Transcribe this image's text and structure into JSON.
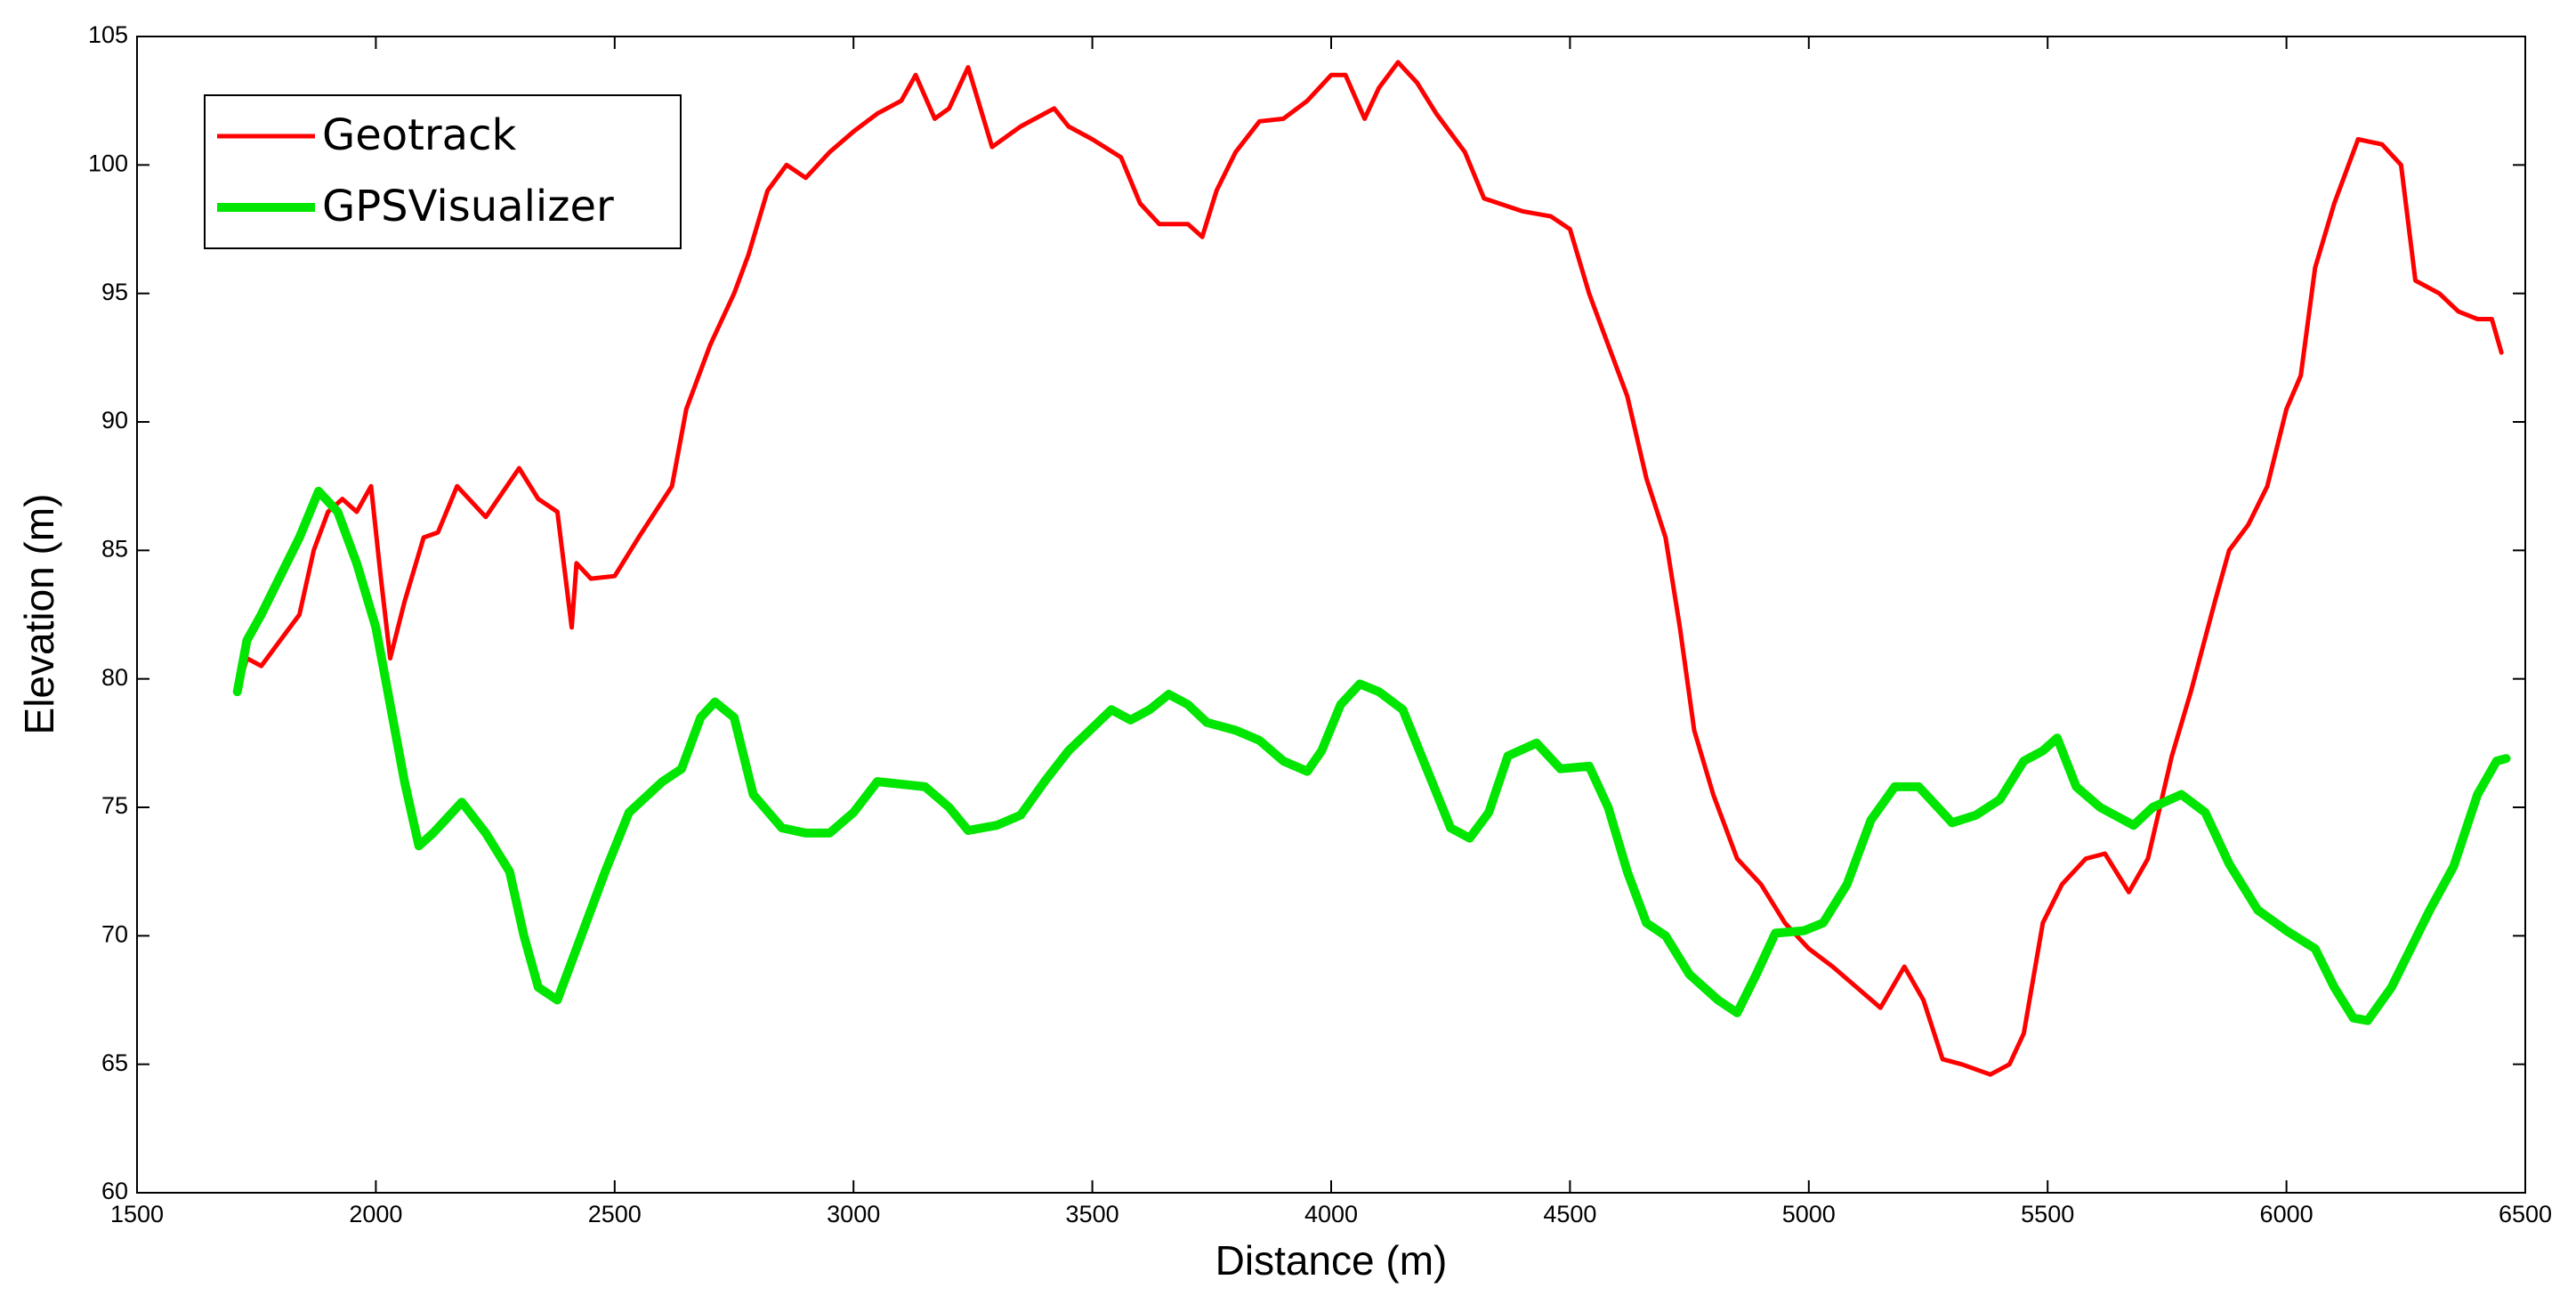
{
  "chart_data": {
    "type": "line",
    "xlabel": "Distance (m)",
    "ylabel": "Elevation (m)",
    "xlim": [
      1500,
      6500
    ],
    "xticks": [
      1500,
      2000,
      2500,
      3000,
      3500,
      4000,
      4500,
      5000,
      5500,
      6000,
      6500
    ],
    "ylim": [
      60,
      105
    ],
    "yticks": [
      60,
      65,
      70,
      75,
      80,
      85,
      90,
      95,
      100,
      105
    ],
    "legend": "upper left",
    "series": [
      {
        "name": "Geotrack",
        "color": "#ff0000",
        "x": [
          1710,
          1730,
          1760,
          1800,
          1840,
          1870,
          1900,
          1930,
          1960,
          1990,
          2010,
          2030,
          2060,
          2100,
          2130,
          2170,
          2230,
          2300,
          2340,
          2380,
          2410,
          2420,
          2450,
          2500,
          2550,
          2620,
          2650,
          2700,
          2750,
          2780,
          2820,
          2860,
          2900,
          2950,
          3000,
          3050,
          3100,
          3130,
          3170,
          3200,
          3240,
          3290,
          3350,
          3420,
          3450,
          3500,
          3560,
          3600,
          3640,
          3700,
          3730,
          3760,
          3800,
          3850,
          3900,
          3950,
          4000,
          4030,
          4070,
          4100,
          4140,
          4180,
          4220,
          4280,
          4320,
          4400,
          4460,
          4500,
          4540,
          4580,
          4620,
          4660,
          4700,
          4730,
          4760,
          4800,
          4850,
          4900,
          4950,
          5000,
          5050,
          5100,
          5150,
          5200,
          5240,
          5280,
          5320,
          5380,
          5420,
          5450,
          5490,
          5530,
          5580,
          5620,
          5670,
          5710,
          5760,
          5800,
          5850,
          5880,
          5920,
          5960,
          6000,
          6030,
          6060,
          6100,
          6150,
          6200,
          6240,
          6270,
          6320,
          6360,
          6400,
          6430,
          6450
        ],
        "values": [
          79.5,
          80.8,
          80.5,
          81.5,
          82.5,
          85,
          86.5,
          87,
          86.5,
          87.5,
          84,
          80.8,
          83,
          85.5,
          85.7,
          87.5,
          86.3,
          88.2,
          87,
          86.5,
          82,
          84.5,
          83.9,
          84,
          85.5,
          87.5,
          90.5,
          93,
          95,
          96.5,
          99,
          100,
          99.5,
          100.5,
          101.3,
          102,
          102.5,
          103.5,
          101.8,
          102.2,
          103.8,
          100.7,
          101.5,
          102.2,
          101.5,
          101,
          100.3,
          98.5,
          97.7,
          97.7,
          97.2,
          99,
          100.5,
          101.7,
          101.8,
          102.5,
          103.5,
          103.5,
          101.8,
          103,
          104,
          103.2,
          102,
          100.5,
          98.7,
          98.2,
          98,
          97.5,
          95,
          93,
          91,
          87.8,
          85.5,
          82,
          78,
          75.5,
          73,
          72,
          70.5,
          69.5,
          68.8,
          68,
          67.2,
          68.8,
          67.5,
          65.2,
          65,
          64.6,
          65,
          66.2,
          70.5,
          72,
          73,
          73.2,
          71.7,
          73,
          77,
          79.5,
          83,
          85,
          86,
          87.5,
          90.5,
          91.8,
          96,
          98.5,
          101,
          100.8,
          100,
          95.5,
          95,
          94.3,
          94,
          94,
          92.7
        ]
      },
      {
        "name": "GPSVisualizer",
        "color": "#00e600",
        "x": [
          1710,
          1730,
          1760,
          1800,
          1840,
          1880,
          1920,
          1960,
          2000,
          2030,
          2060,
          2090,
          2120,
          2180,
          2230,
          2280,
          2310,
          2340,
          2380,
          2420,
          2480,
          2530,
          2600,
          2640,
          2680,
          2710,
          2750,
          2790,
          2850,
          2900,
          2950,
          3000,
          3050,
          3100,
          3150,
          3200,
          3240,
          3300,
          3350,
          3400,
          3450,
          3540,
          3580,
          3620,
          3660,
          3700,
          3740,
          3800,
          3850,
          3900,
          3950,
          3980,
          4020,
          4060,
          4100,
          4150,
          4200,
          4250,
          4290,
          4330,
          4370,
          4430,
          4480,
          4540,
          4580,
          4620,
          4660,
          4700,
          4750,
          4810,
          4850,
          4890,
          4930,
          4990,
          5030,
          5080,
          5130,
          5180,
          5230,
          5260,
          5300,
          5350,
          5400,
          5450,
          5490,
          5520,
          5560,
          5610,
          5680,
          5720,
          5780,
          5830,
          5880,
          5940,
          6000,
          6060,
          6100,
          6140,
          6170,
          6220,
          6260,
          6300,
          6350,
          6400,
          6440,
          6460
        ],
        "values": [
          79.5,
          81.5,
          82.5,
          84,
          85.5,
          87.3,
          86.5,
          84.5,
          82,
          79,
          76,
          73.5,
          74,
          75.2,
          74,
          72.5,
          70,
          68,
          67.5,
          69.5,
          72.5,
          74.8,
          76,
          76.5,
          78.5,
          79.1,
          78.5,
          75.5,
          74.2,
          74,
          74,
          74.8,
          76,
          75.9,
          75.8,
          75,
          74.1,
          74.3,
          74.7,
          76,
          77.2,
          78.8,
          78.4,
          78.8,
          79.4,
          79,
          78.3,
          78,
          77.6,
          76.8,
          76.4,
          77.2,
          79,
          79.8,
          79.5,
          78.8,
          76.5,
          74.2,
          73.8,
          74.8,
          77,
          77.5,
          76.5,
          76.6,
          75,
          72.5,
          70.5,
          70,
          68.5,
          67.5,
          67,
          68.5,
          70.1,
          70.2,
          70.5,
          72,
          74.5,
          75.8,
          75.8,
          75.2,
          74.4,
          74.7,
          75.3,
          76.8,
          77.2,
          77.7,
          75.8,
          75,
          74.3,
          75,
          75.5,
          74.8,
          72.8,
          71,
          70.2,
          69.5,
          68,
          66.8,
          66.7,
          68,
          69.5,
          71,
          72.7,
          75.5,
          76.8,
          76.9
        ]
      }
    ]
  }
}
